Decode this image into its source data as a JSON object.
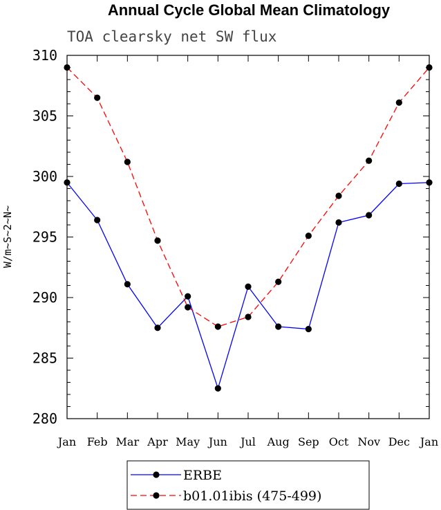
{
  "chart_data": {
    "type": "line",
    "title": "Annual Cycle Global Mean Climatology",
    "subtitle": "TOA clearsky net SW flux",
    "ylabel": "W/m~S~2~N~",
    "xlabel": "",
    "categories": [
      "Jan",
      "Feb",
      "Mar",
      "Apr",
      "May",
      "Jun",
      "Jul",
      "Aug",
      "Sep",
      "Oct",
      "Nov",
      "Dec",
      "Jan"
    ],
    "ylim": [
      280,
      310
    ],
    "yticks": [
      280,
      285,
      290,
      295,
      300,
      305,
      310
    ],
    "grid": false,
    "legend_position": "bottom",
    "series": [
      {
        "name": "ERBE",
        "color": "#0000ff",
        "dash": "solid",
        "marker": "circle",
        "values": [
          299.5,
          296.4,
          291.1,
          287.5,
          290.1,
          282.5,
          290.9,
          287.6,
          287.4,
          296.2,
          296.8,
          299.4,
          299.5
        ]
      },
      {
        "name": "b01.01ibis (475-499)",
        "color": "#ff0000",
        "dash": "dashed",
        "marker": "circle",
        "values": [
          309.0,
          306.5,
          301.2,
          294.7,
          289.2,
          287.6,
          288.4,
          291.3,
          295.1,
          298.4,
          301.3,
          306.1,
          309.0
        ]
      }
    ]
  }
}
